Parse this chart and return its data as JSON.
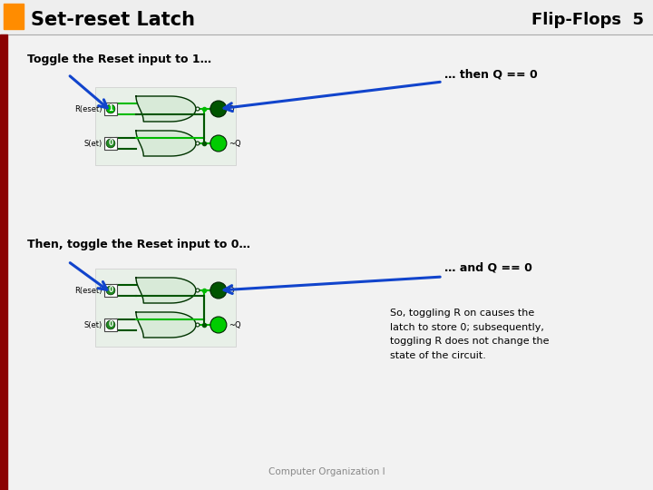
{
  "title_left": "Set-reset Latch",
  "title_right": "Flip-Flops  5",
  "title_orange_color": "#FF8C00",
  "title_text_color": "#000000",
  "background_color": "#F0F0F0",
  "sidebar_color": "#8B0000",
  "section1_label": "Toggle the Reset input to 1…",
  "section1_arrow_label": "… then Q == 0",
  "section2_label": "Then, toggle the Reset input to 0…",
  "section2_arrow_label": "… and Q == 0",
  "note_text": "So, toggling R on causes the\nlatch to store 0; subsequently,\ntoggling R does not change the\nstate of the circuit.",
  "footer": "Computer Organization I",
  "wire_active": "#00BB00",
  "wire_inactive": "#005500",
  "gate_fill": "#d8ead8",
  "gate_edge": "#003300",
  "q_active_color": "#00CC00",
  "q_inactive_color": "#005500",
  "arrow_color": "#1144CC"
}
